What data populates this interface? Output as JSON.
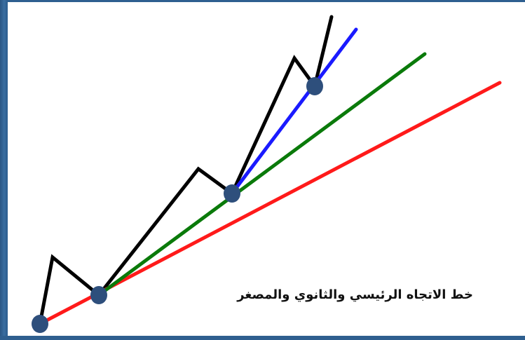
{
  "diagram": {
    "caption": "خط الاتجاه الرئيسي والثانوي والمصغر",
    "colors": {
      "price": "#000000",
      "major_trend": "#ff1a1a",
      "secondary_trend": "#0a7a0a",
      "minor_trend": "#1a1aff",
      "pivot": "#2e4f7c",
      "border": "#2f5f8f"
    }
  }
}
